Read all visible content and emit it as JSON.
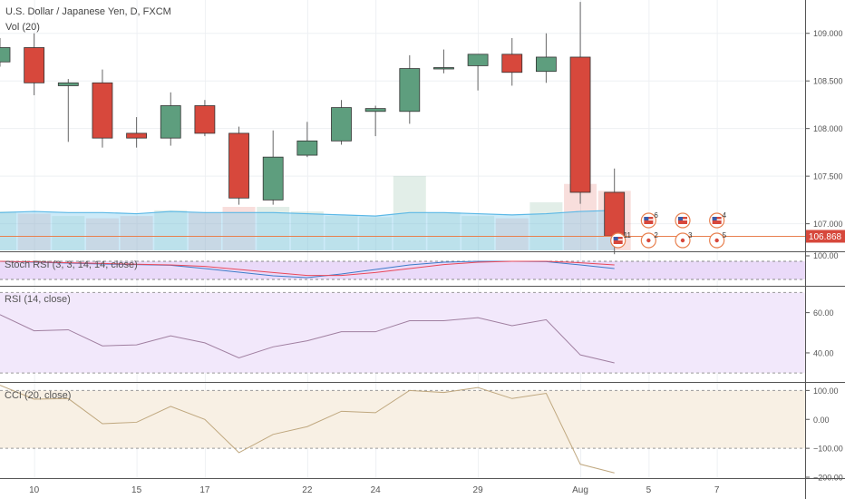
{
  "header": {
    "title": "U.S. Dollar / Japanese Yen, D, FXCM",
    "volume_label": "Vol (20)"
  },
  "panes": {
    "stoch_label": "Stoch RSI (3, 3, 14, 14, close)",
    "rsi_label": "RSI (14, close)",
    "cci_label": "CCI (20, close)"
  },
  "colors": {
    "up": "#5e9e7e",
    "down": "#d7483c",
    "price_line": "#e8804f",
    "stoch_k": "#3d7cc9",
    "stoch_d": "#e9495a",
    "rsi_line": "#a07fa0",
    "cci_line": "#bfa77e",
    "stoch_bg": "#e8d6f8",
    "rsi_bg": "#f2e8fb",
    "cci_bg": "#f8f0e4"
  },
  "last_price": "106.868",
  "chart_data": [
    {
      "type": "candlestick",
      "title": "U.S. Dollar / Japanese Yen, D, FXCM",
      "x": [
        "Jul 9",
        "Jul 10",
        "Jul 11",
        "Jul 12",
        "Jul 15",
        "Jul 16",
        "Jul 17",
        "Jul 18",
        "Jul 19",
        "Jul 22",
        "Jul 23",
        "Jul 24",
        "Jul 25",
        "Jul 26",
        "Jul 29",
        "Jul 30",
        "Jul 31",
        "Aug 1",
        "Aug 2"
      ],
      "open": [
        108.7,
        108.85,
        108.45,
        108.48,
        107.95,
        107.9,
        108.24,
        107.95,
        107.25,
        107.72,
        107.87,
        108.18,
        108.18,
        108.63,
        108.66,
        108.78,
        108.6,
        108.75,
        107.33
      ],
      "high": [
        108.95,
        109.0,
        108.52,
        108.62,
        108.12,
        108.38,
        108.3,
        108.02,
        107.98,
        108.07,
        108.3,
        108.24,
        108.77,
        108.83,
        108.78,
        108.95,
        109.0,
        109.33,
        107.58
      ],
      "low": [
        108.65,
        108.35,
        107.86,
        107.8,
        107.8,
        107.82,
        107.92,
        107.2,
        107.2,
        107.7,
        107.83,
        107.92,
        108.05,
        108.58,
        108.4,
        108.45,
        108.48,
        107.21,
        106.68
      ],
      "close": [
        108.85,
        108.48,
        108.48,
        107.9,
        107.9,
        108.24,
        107.95,
        107.27,
        107.7,
        107.87,
        108.22,
        108.21,
        108.63,
        108.64,
        108.78,
        108.59,
        108.75,
        107.33,
        106.87
      ],
      "ylim": [
        106.72,
        109.35
      ],
      "y_ticks": [
        107.0,
        107.5,
        108.0,
        108.5,
        109.0
      ],
      "y_tick_labels": [
        "107.000",
        "107.500",
        "108.000",
        "108.500",
        "109.000"
      ],
      "last_price": 106.868
    },
    {
      "type": "bar",
      "title": "Vol (20)",
      "x": [
        "Jul 9",
        "Jul 10",
        "Jul 11",
        "Jul 12",
        "Jul 15",
        "Jul 16",
        "Jul 17",
        "Jul 18",
        "Jul 19",
        "Jul 22",
        "Jul 23",
        "Jul 24",
        "Jul 25",
        "Jul 26",
        "Jul 29",
        "Jul 30",
        "Jul 31",
        "Aug 1",
        "Aug 2"
      ],
      "values": [
        34,
        32,
        30,
        28,
        30,
        35,
        33,
        38,
        38,
        34,
        30,
        29,
        65,
        33,
        30,
        28,
        42,
        58,
        52
      ],
      "moving_average": [
        33,
        34,
        33,
        33,
        32,
        34,
        33,
        33,
        33,
        32,
        31,
        30,
        33,
        33,
        32,
        31,
        32,
        34,
        35
      ]
    },
    {
      "type": "line",
      "title": "Stoch RSI (3, 3, 14, 14, close)",
      "ylim": [
        0,
        100
      ],
      "y_ticks": [
        100
      ],
      "y_tick_labels": [
        "100.00"
      ],
      "series": [
        {
          "name": "K",
          "values": [
            100,
            95,
            90,
            85,
            82,
            78,
            60,
            40,
            20,
            10,
            30,
            55,
            80,
            95,
            100,
            100,
            98,
            80,
            60
          ]
        },
        {
          "name": "D",
          "values": [
            100,
            97,
            92,
            88,
            84,
            80,
            72,
            55,
            38,
            22,
            22,
            38,
            60,
            82,
            95,
            100,
            100,
            92,
            80
          ]
        }
      ]
    },
    {
      "type": "line",
      "title": "RSI (14, close)",
      "ylim": [
        26,
        72
      ],
      "y_ticks": [
        40,
        60
      ],
      "y_tick_labels": [
        "40.00",
        "60.00"
      ],
      "bands": [
        30,
        70
      ],
      "values": [
        59,
        51,
        51.5,
        43.5,
        44,
        48.5,
        45,
        37.5,
        43,
        46,
        50.5,
        50.5,
        56,
        56,
        57.5,
        53.5,
        56.5,
        39,
        35
      ]
    },
    {
      "type": "line",
      "title": "CCI (20, close)",
      "ylim": [
        -200,
        120
      ],
      "y_ticks": [
        100,
        0,
        -100,
        -200
      ],
      "y_tick_labels": [
        "100.00",
        "0.00",
        "−100.00",
        "−200.00"
      ],
      "bands": [
        100,
        -100
      ],
      "values": [
        118,
        70,
        72,
        -15,
        -10,
        45,
        0,
        -115,
        -52,
        -25,
        28,
        23,
        100,
        93,
        110,
        72,
        90,
        -155,
        -185
      ]
    }
  ],
  "x_axis": {
    "ticks": [
      {
        "label": "10",
        "index": 1
      },
      {
        "label": "15",
        "index": 4
      },
      {
        "label": "17",
        "index": 6
      },
      {
        "label": "22",
        "index": 9
      },
      {
        "label": "24",
        "index": 11
      },
      {
        "label": "29",
        "index": 14
      },
      {
        "label": "Aug",
        "index": 17
      },
      {
        "label": "5",
        "index": 19
      },
      {
        "label": "7",
        "index": 21
      }
    ]
  },
  "events": [
    {
      "kind": "us-flag",
      "index": 19,
      "label": "6"
    },
    {
      "kind": "us-flag",
      "index": 20,
      "label": ""
    },
    {
      "kind": "us-flag",
      "index": 21,
      "label": "4"
    },
    {
      "kind": "us-flag",
      "index": 18,
      "label": "11"
    },
    {
      "kind": "dot",
      "index": 19,
      "label": "2"
    },
    {
      "kind": "dot",
      "index": 20,
      "label": "3"
    },
    {
      "kind": "dot",
      "index": 21,
      "label": "5"
    }
  ]
}
